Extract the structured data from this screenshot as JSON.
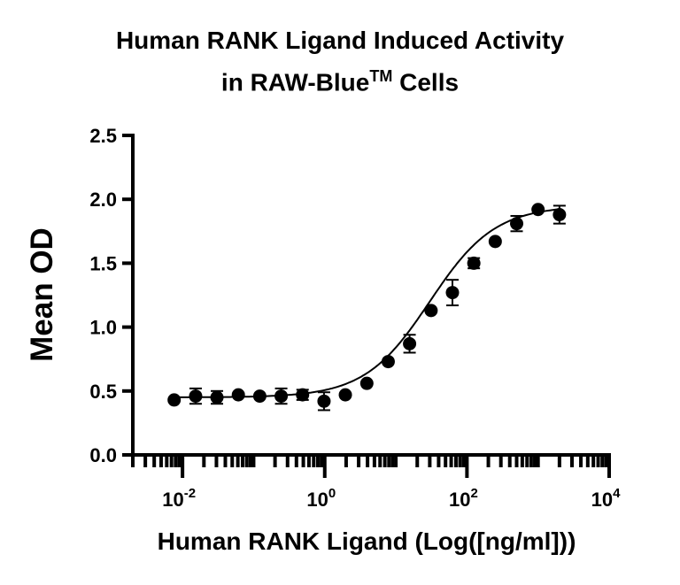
{
  "chart_data": {
    "type": "scatter",
    "title_line1": "Human RANK Ligand Induced Activity",
    "title_line2_pre": "in RAW-Blue",
    "title_line2_sup": "TM",
    "title_line2_post": " Cells",
    "xlabel": "Human RANK Ligand (Log([ng/ml]))",
    "ylabel": "Mean OD",
    "xscale": "log",
    "xlim": [
      0.002,
      10000
    ],
    "ylim": [
      0,
      2.5
    ],
    "grid": false,
    "yticks": [
      "0.0",
      "0.5",
      "1.0",
      "1.5",
      "2.0",
      "2.5"
    ],
    "xticks": [
      {
        "base": "10",
        "exp": "-2"
      },
      {
        "base": "10",
        "exp": "0"
      },
      {
        "base": "10",
        "exp": "2"
      },
      {
        "base": "10",
        "exp": "4"
      }
    ],
    "x": [
      0.00763,
      0.0153,
      0.0305,
      0.061,
      0.122,
      0.244,
      0.488,
      0.977,
      1.95,
      3.91,
      7.81,
      15.6,
      31.3,
      62.5,
      125,
      250,
      500,
      1000,
      2000
    ],
    "y": [
      0.43,
      0.46,
      0.45,
      0.47,
      0.46,
      0.46,
      0.47,
      0.42,
      0.47,
      0.56,
      0.73,
      0.87,
      1.13,
      1.27,
      1.5,
      1.67,
      1.81,
      1.92,
      1.88
    ],
    "error": [
      0,
      0.06,
      0.05,
      0,
      0,
      0.06,
      0.04,
      0.07,
      0,
      0,
      0,
      0.07,
      0,
      0.1,
      0.04,
      0,
      0.06,
      0,
      0.07
    ],
    "fit": {
      "model": "4PL",
      "bottom": 0.45,
      "top": 1.95,
      "ec50": 30,
      "hill": 0.95
    },
    "color": "#000000"
  }
}
